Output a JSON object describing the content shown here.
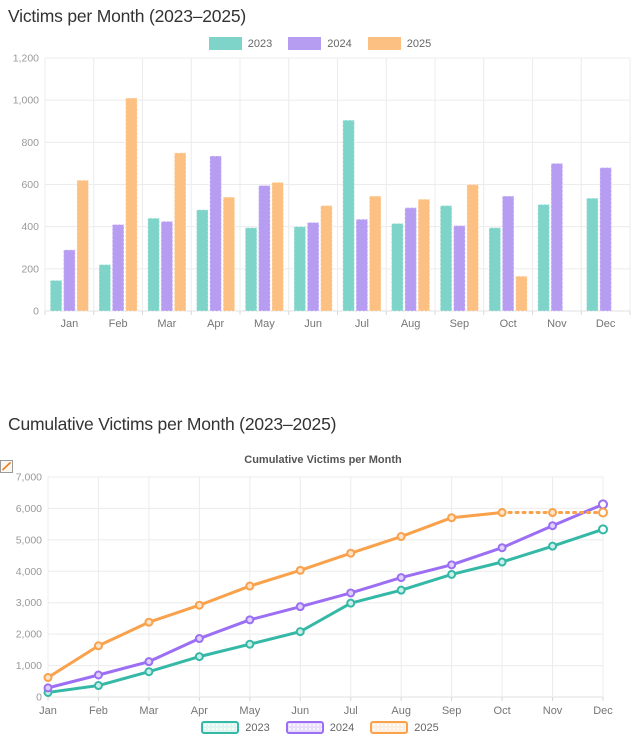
{
  "chart_data": [
    {
      "type": "bar",
      "title": "Victims per Month (2023–2025)",
      "categories": [
        "Jan",
        "Feb",
        "Mar",
        "Apr",
        "May",
        "Jun",
        "Jul",
        "Aug",
        "Sep",
        "Oct",
        "Nov",
        "Dec"
      ],
      "series": [
        {
          "name": "2023",
          "color": "#7ed4c8",
          "values": [
            145,
            220,
            440,
            480,
            395,
            400,
            905,
            415,
            500,
            395,
            505,
            535
          ]
        },
        {
          "name": "2024",
          "color": "#b79df2",
          "values": [
            290,
            410,
            425,
            735,
            595,
            420,
            435,
            490,
            405,
            545,
            700,
            680
          ]
        },
        {
          "name": "2025",
          "color": "#fcc083",
          "values": [
            620,
            1010,
            750,
            540,
            610,
            500,
            545,
            530,
            600,
            165,
            null,
            null
          ]
        }
      ],
      "ylim": [
        0,
        1200
      ],
      "ytick_step": 200,
      "legend_position": "top",
      "grid": true
    },
    {
      "type": "line",
      "title": "Cumulative Victims per Month (2023–2025)",
      "legend_label": "Cumulative Victims per Month",
      "categories": [
        "Jan",
        "Feb",
        "Mar",
        "Apr",
        "May",
        "Jun",
        "Jul",
        "Aug",
        "Sep",
        "Oct",
        "Nov",
        "Dec"
      ],
      "series": [
        {
          "name": "2023",
          "color": "#35b8a6",
          "point_fill": "#c9efe8",
          "legend_fill": "#dff5f0",
          "values": [
            145,
            365,
            805,
            1285,
            1680,
            2080,
            2985,
            3400,
            3900,
            4295,
            4800,
            5335
          ]
        },
        {
          "name": "2024",
          "color": "#9b6ef3",
          "point_fill": "#ddd0fa",
          "legend_fill": "#e7def9",
          "values": [
            290,
            700,
            1125,
            1860,
            2455,
            2875,
            3310,
            3800,
            4205,
            4750,
            5450,
            6130
          ]
        },
        {
          "name": "2025",
          "color": "#f9a14b",
          "point_fill": "#fde3c8",
          "legend_fill": "#fdeedd",
          "dash_after": 9,
          "values": [
            620,
            1630,
            2380,
            2920,
            3530,
            4030,
            4575,
            5105,
            5705,
            5870,
            5870,
            5870
          ]
        }
      ],
      "ylim": [
        0,
        7000
      ],
      "ytick_step": 1000,
      "legend_position": "bottom",
      "grid": true
    }
  ]
}
